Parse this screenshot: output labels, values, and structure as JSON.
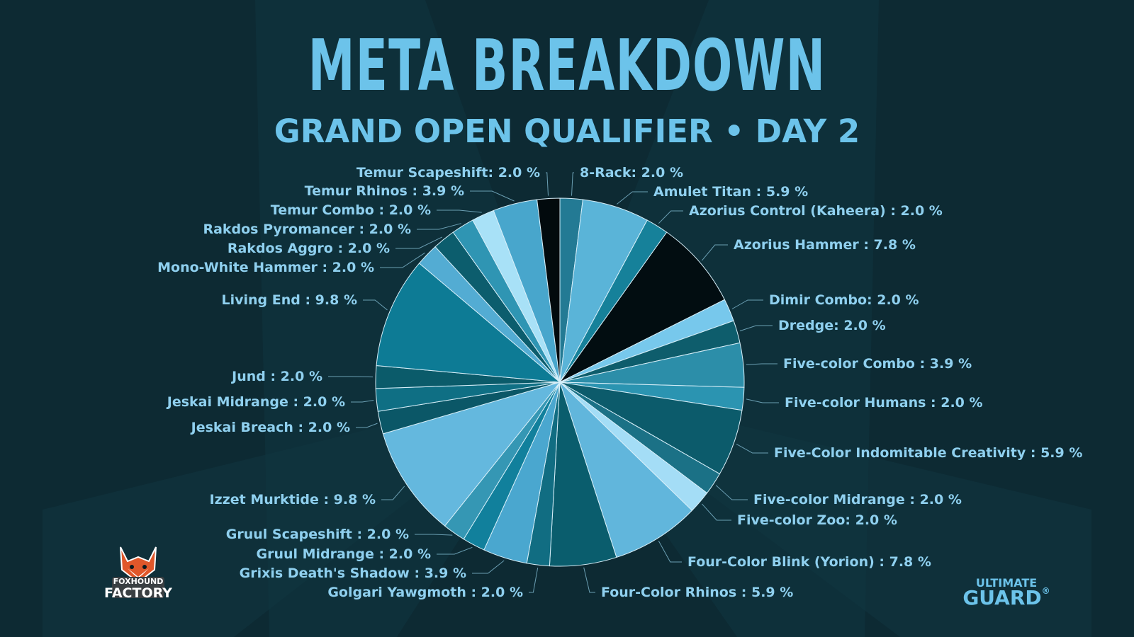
{
  "header": {
    "title": "META BREAKDOWN",
    "subtitle": "GRAND OPEN QUALIFIER • DAY 2"
  },
  "logos": {
    "left_top": "FOXHOUND",
    "left_bottom": "FACTORY",
    "right_top": "ULTIMATE",
    "right_bottom": "GUARD",
    "right_mark": "®"
  },
  "colors": {
    "background": "#0d2a33",
    "title": "#6cc3ea",
    "label": "#8fd0ef"
  },
  "chart_data": {
    "type": "pie",
    "title": "META BREAKDOWN",
    "subtitle": "GRAND OPEN QUALIFIER • DAY 2",
    "unit": "%",
    "start": "12 o'clock",
    "direction": "clockwise",
    "legend": "none (slice labels with leader lines)",
    "slices": [
      {
        "name": "8-Rack",
        "value": 2.0,
        "label": "8-Rack: 2.0 %",
        "color": "#237a94"
      },
      {
        "name": "Amulet Titan",
        "value": 5.9,
        "label": "Amulet Titan : 5.9 %",
        "color": "#5ab4d8"
      },
      {
        "name": "Azorius Control (Kaheera)",
        "value": 2.0,
        "label": "Azorius Control (Kaheera) : 2.0 %",
        "color": "#16819a"
      },
      {
        "name": "Azorius Hammer",
        "value": 7.8,
        "label": "Azorius Hammer : 7.8 %",
        "color": "#020d11"
      },
      {
        "name": "Dimir Combo",
        "value": 2.0,
        "label": "Dimir Combo: 2.0 %",
        "color": "#77c8ec"
      },
      {
        "name": "Dredge",
        "value": 2.0,
        "label": "Dredge: 2.0 %",
        "color": "#0e5d6c"
      },
      {
        "name": "Five-color Combo",
        "value": 3.9,
        "label": "Five-color Combo : 3.9 %",
        "color": "#2c8ea9"
      },
      {
        "name": "Five-color Humans",
        "value": 2.0,
        "label": "Five-color Humans : 2.0 %",
        "color": "#2b94b1"
      },
      {
        "name": "Five-Color Indomitable Creativity",
        "value": 5.9,
        "label": "Five-Color Indomitable Creativity : 5.9 %",
        "color": "#0c5b6b"
      },
      {
        "name": "Five-color Midrange",
        "value": 2.0,
        "label": "Five-color Midrange : 2.0 %",
        "color": "#1b7186"
      },
      {
        "name": "Five-color Zoo",
        "value": 2.0,
        "label": "Five-color Zoo: 2.0 %",
        "color": "#a4ddf6"
      },
      {
        "name": "Four-Color Blink (Yorion)",
        "value": 7.8,
        "label": "Four-Color Blink (Yorion) : 7.8 %",
        "color": "#61b6dc"
      },
      {
        "name": "Four-Color Rhinos",
        "value": 5.9,
        "label": "Four-Color Rhinos : 5.9 %",
        "color": "#0a5d6d"
      },
      {
        "name": "Golgari Yawgmoth",
        "value": 2.0,
        "label": "Golgari Yawgmoth : 2.0 %",
        "color": "#116d82"
      },
      {
        "name": "Grixis Death's Shadow",
        "value": 3.9,
        "label": "Grixis Death's Shadow : 3.9 %",
        "color": "#4aa7cf"
      },
      {
        "name": "Gruul Midrange",
        "value": 2.0,
        "label": "Gruul Midrange : 2.0 %",
        "color": "#11809c"
      },
      {
        "name": "Gruul Scapeshift",
        "value": 2.0,
        "label": "Gruul Scapeshift : 2.0 %",
        "color": "#3597b4"
      },
      {
        "name": "Izzet Murktide",
        "value": 9.8,
        "label": "Izzet Murktide : 9.8 %",
        "color": "#64b8de"
      },
      {
        "name": "Jeskai Breach",
        "value": 2.0,
        "label": "Jeskai Breach : 2.0 %",
        "color": "#0b5767"
      },
      {
        "name": "Jeskai Midrange",
        "value": 2.0,
        "label": "Jeskai Midrange : 2.0 %",
        "color": "#0f6f84"
      },
      {
        "name": "Jund",
        "value": 2.0,
        "label": "Jund : 2.0 %",
        "color": "#0b5b6a"
      },
      {
        "name": "Living End",
        "value": 9.8,
        "label": "Living End : 9.8 %",
        "color": "#0d7b95"
      },
      {
        "name": "Mono-White Hammer",
        "value": 2.0,
        "label": "Mono-White Hammer : 2.0 %",
        "color": "#53acd3"
      },
      {
        "name": "Rakdos Aggro",
        "value": 2.0,
        "label": "Rakdos Aggro : 2.0 %",
        "color": "#0c5d6d"
      },
      {
        "name": "Rakdos Pyromancer",
        "value": 2.0,
        "label": "Rakdos Pyromancer : 2.0 %",
        "color": "#2f95b3"
      },
      {
        "name": "Temur Combo",
        "value": 2.0,
        "label": "Temur Combo : 2.0 %",
        "color": "#a8e1f7"
      },
      {
        "name": "Temur Rhinos",
        "value": 3.9,
        "label": "Temur Rhinos : 3.9 %",
        "color": "#48a6cc"
      },
      {
        "name": "Temur Scapeshift",
        "value": 2.0,
        "label": "Temur Scapeshift: 2.0 %",
        "color": "#020a0d"
      }
    ]
  }
}
